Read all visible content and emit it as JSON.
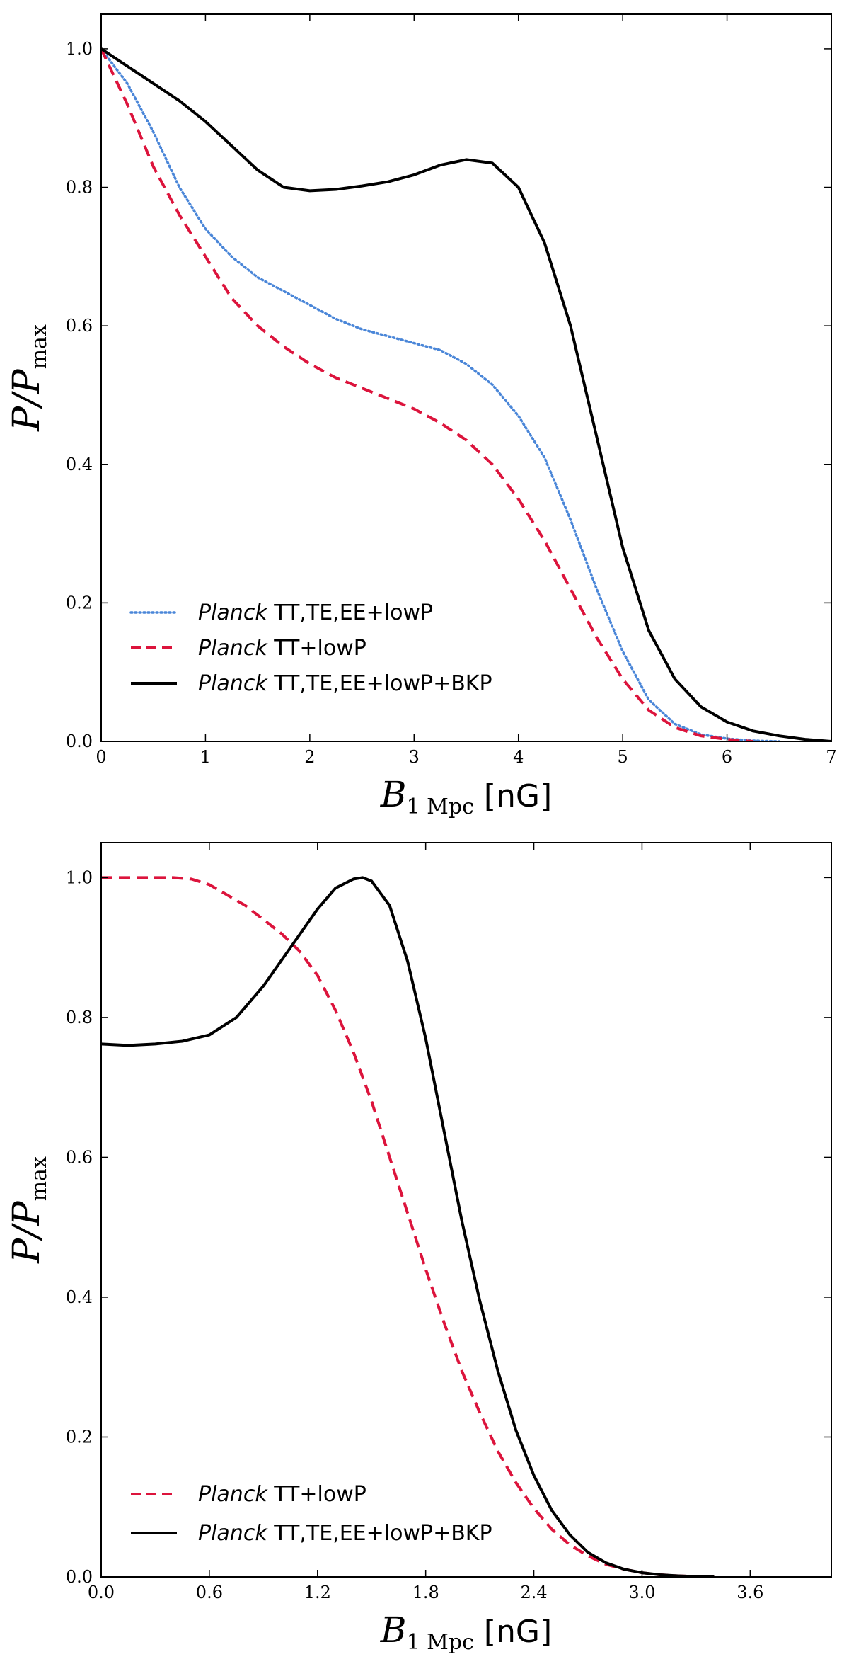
{
  "chart_data": [
    {
      "type": "line",
      "title": "",
      "xlabel": {
        "math": "B",
        "sub": "1 Mpc",
        "unit": "[nG]"
      },
      "ylabel": {
        "math": "P/P",
        "sub": "max"
      },
      "xlim": [
        0,
        7
      ],
      "ylim": [
        0,
        1.05
      ],
      "xticks": [
        "0",
        "1",
        "2",
        "3",
        "4",
        "5",
        "6",
        "7"
      ],
      "yticks": [
        "0.0",
        "0.2",
        "0.4",
        "0.6",
        "0.8",
        "1.0"
      ],
      "xtick_values": [
        0,
        1,
        2,
        3,
        4,
        5,
        6,
        7
      ],
      "ytick_values": [
        0,
        0.2,
        0.4,
        0.6,
        0.8,
        1.0
      ],
      "legend_position": "bottom-left",
      "series": [
        {
          "name_italic": "Planck",
          "name_rest": " TT,TE,EE+lowP",
          "color": "#4a86d8",
          "style": "dotted",
          "x": [
            0,
            0.25,
            0.5,
            0.75,
            1,
            1.25,
            1.5,
            1.75,
            2,
            2.25,
            2.5,
            2.75,
            3,
            3.25,
            3.5,
            3.75,
            4,
            4.25,
            4.5,
            4.75,
            5,
            5.25,
            5.5,
            5.75,
            6,
            6.25,
            6.5
          ],
          "y": [
            1.0,
            0.95,
            0.88,
            0.8,
            0.74,
            0.7,
            0.67,
            0.65,
            0.63,
            0.61,
            0.595,
            0.585,
            0.575,
            0.565,
            0.545,
            0.515,
            0.47,
            0.41,
            0.32,
            0.22,
            0.13,
            0.06,
            0.025,
            0.01,
            0.004,
            0.001,
            0.0
          ]
        },
        {
          "name_italic": "Planck",
          "name_rest": " TT+lowP",
          "color": "#dc143c",
          "style": "dashed",
          "x": [
            0,
            0.25,
            0.5,
            0.75,
            1,
            1.25,
            1.5,
            1.75,
            2,
            2.25,
            2.5,
            2.75,
            3,
            3.25,
            3.5,
            3.75,
            4,
            4.25,
            4.5,
            4.75,
            5,
            5.25,
            5.5,
            5.75,
            6,
            6.25
          ],
          "y": [
            1.0,
            0.92,
            0.83,
            0.76,
            0.7,
            0.64,
            0.6,
            0.57,
            0.545,
            0.525,
            0.51,
            0.495,
            0.48,
            0.46,
            0.435,
            0.4,
            0.35,
            0.29,
            0.22,
            0.15,
            0.09,
            0.045,
            0.02,
            0.008,
            0.003,
            0.0
          ]
        },
        {
          "name_italic": "Planck",
          "name_rest": " TT,TE,EE+lowP+BKP",
          "color": "#000000",
          "style": "solid",
          "x": [
            0,
            0.25,
            0.5,
            0.75,
            1,
            1.25,
            1.5,
            1.75,
            2,
            2.25,
            2.5,
            2.75,
            3,
            3.25,
            3.5,
            3.75,
            4,
            4.25,
            4.5,
            4.75,
            5,
            5.25,
            5.5,
            5.75,
            6,
            6.25,
            6.5,
            6.75,
            7
          ],
          "y": [
            1.0,
            0.975,
            0.95,
            0.925,
            0.895,
            0.86,
            0.825,
            0.8,
            0.795,
            0.797,
            0.802,
            0.808,
            0.818,
            0.832,
            0.84,
            0.835,
            0.8,
            0.72,
            0.6,
            0.44,
            0.28,
            0.16,
            0.09,
            0.05,
            0.028,
            0.015,
            0.008,
            0.003,
            0.0
          ]
        }
      ]
    },
    {
      "type": "line",
      "title": "",
      "xlabel": {
        "math": "B",
        "sub": "1 Mpc",
        "unit": "[nG]"
      },
      "ylabel": {
        "math": "P/P",
        "sub": "max"
      },
      "xlim": [
        0,
        4.05
      ],
      "ylim": [
        0,
        1.05
      ],
      "xticks": [
        "0.0",
        "0.6",
        "1.2",
        "1.8",
        "2.4",
        "3.0",
        "3.6"
      ],
      "yticks": [
        "0.0",
        "0.2",
        "0.4",
        "0.6",
        "0.8",
        "1.0"
      ],
      "xtick_values": [
        0,
        0.6,
        1.2,
        1.8,
        2.4,
        3.0,
        3.6
      ],
      "ytick_values": [
        0,
        0.2,
        0.4,
        0.6,
        0.8,
        1.0
      ],
      "legend_position": "bottom-left",
      "series": [
        {
          "name_italic": "Planck",
          "name_rest": " TT+lowP",
          "color": "#dc143c",
          "style": "dashed",
          "x": [
            0,
            0.2,
            0.4,
            0.5,
            0.6,
            0.8,
            1.0,
            1.1,
            1.2,
            1.3,
            1.4,
            1.5,
            1.6,
            1.7,
            1.8,
            1.9,
            2.0,
            2.1,
            2.2,
            2.3,
            2.4,
            2.5,
            2.6,
            2.7,
            2.8,
            2.9,
            3.0,
            3.1,
            3.2,
            3.3,
            3.4
          ],
          "y": [
            1.0,
            1.0,
            1.0,
            0.998,
            0.99,
            0.96,
            0.92,
            0.895,
            0.86,
            0.81,
            0.75,
            0.68,
            0.6,
            0.52,
            0.44,
            0.365,
            0.295,
            0.235,
            0.18,
            0.135,
            0.098,
            0.068,
            0.046,
            0.03,
            0.018,
            0.011,
            0.006,
            0.003,
            0.0015,
            0.0005,
            0.0
          ]
        },
        {
          "name_italic": "Planck",
          "name_rest": " TT,TE,EE+lowP+BKP",
          "color": "#000000",
          "style": "solid",
          "x": [
            0,
            0.15,
            0.3,
            0.45,
            0.6,
            0.75,
            0.9,
            1.05,
            1.2,
            1.3,
            1.4,
            1.45,
            1.5,
            1.6,
            1.7,
            1.8,
            1.9,
            2.0,
            2.1,
            2.2,
            2.3,
            2.4,
            2.5,
            2.6,
            2.7,
            2.8,
            2.9,
            3.0,
            3.1,
            3.2,
            3.3,
            3.4
          ],
          "y": [
            0.762,
            0.76,
            0.762,
            0.766,
            0.775,
            0.8,
            0.845,
            0.9,
            0.955,
            0.985,
            0.998,
            1.0,
            0.995,
            0.96,
            0.88,
            0.77,
            0.64,
            0.51,
            0.395,
            0.295,
            0.21,
            0.145,
            0.095,
            0.06,
            0.035,
            0.02,
            0.011,
            0.006,
            0.003,
            0.0015,
            0.0005,
            0.0
          ]
        }
      ]
    }
  ]
}
